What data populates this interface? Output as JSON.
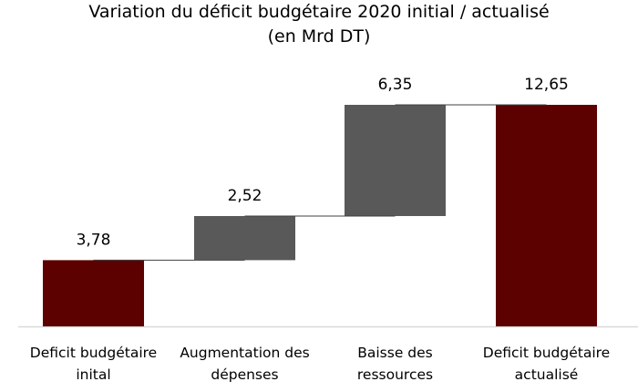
{
  "chart_data": {
    "type": "waterfall",
    "title": "Variation du déficit budgétaire 2020 initial / actualisé",
    "subtitle": "(en Mrd DT)",
    "categories": [
      [
        "Deficit budgétaire",
        "inital"
      ],
      [
        "Augmentation des",
        "dépenses"
      ],
      [
        "Baisse des",
        "ressources"
      ],
      [
        "Deficit budgétaire",
        "actualisé"
      ]
    ],
    "values": [
      3.78,
      2.52,
      6.35,
      12.65
    ],
    "data_labels": [
      "3,78",
      "2,52",
      "6,35",
      "12,65"
    ],
    "kinds": [
      "total",
      "increase",
      "increase",
      "total"
    ],
    "ylim": [
      0,
      13
    ],
    "grid": false,
    "colors": {
      "total": "#5c0000",
      "increase": "#595959",
      "axis": "#d9d9d9",
      "connector": "#404040"
    }
  }
}
